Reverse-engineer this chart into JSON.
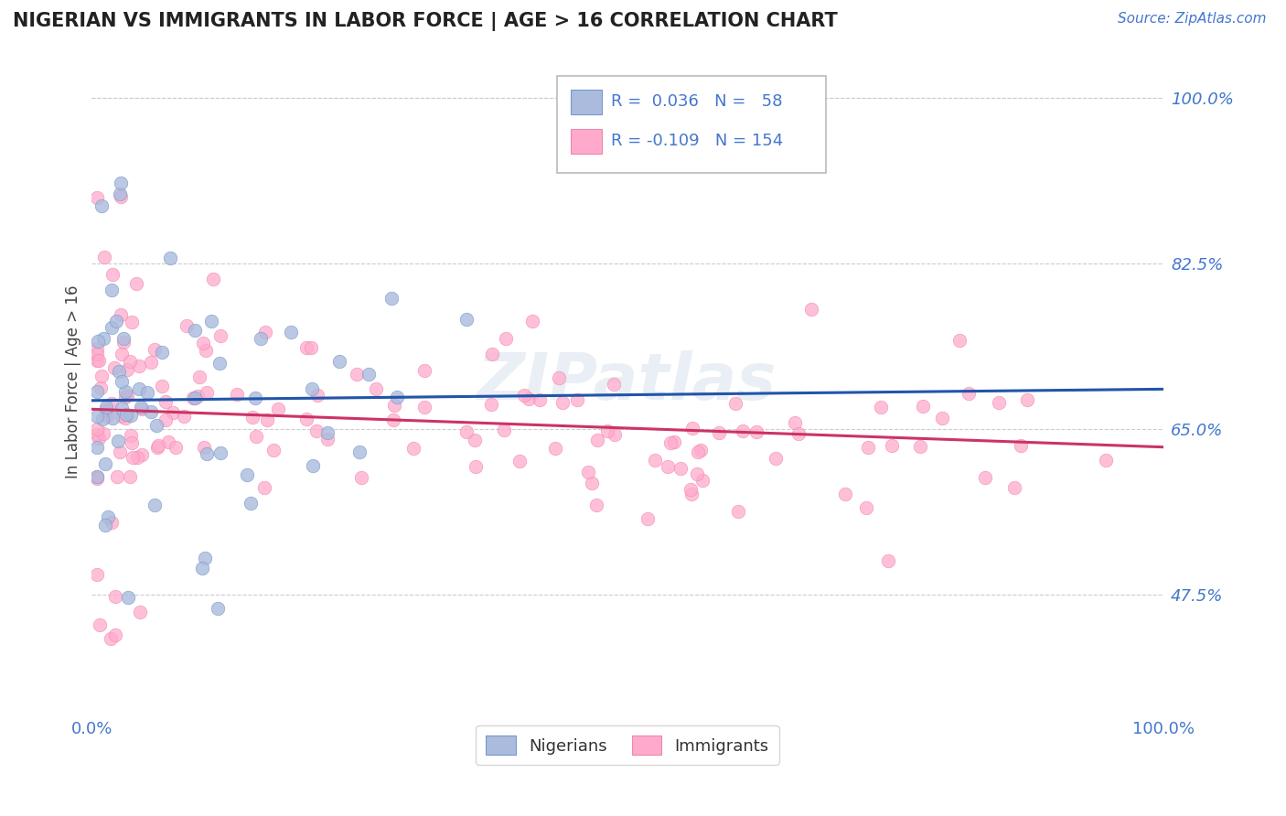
{
  "title": "NIGERIAN VS IMMIGRANTS IN LABOR FORCE | AGE > 16 CORRELATION CHART",
  "source": "Source: ZipAtlas.com",
  "ylabel": "In Labor Force | Age > 16",
  "ytick_values": [
    1.0,
    0.825,
    0.65,
    0.475
  ],
  "ytick_labels": [
    "100.0%",
    "82.5%",
    "65.0%",
    "47.5%"
  ],
  "legend_nigerians_R": "0.036",
  "legend_nigerians_N": "58",
  "legend_immigrants_R": "-0.109",
  "legend_immigrants_N": "154",
  "legend_label_nigerians": "Nigerians",
  "legend_label_immigrants": "Immigrants",
  "blue_fill": "#AABBDD",
  "blue_edge": "#7799CC",
  "pink_fill": "#FFAACC",
  "pink_edge": "#EE88AA",
  "blue_line_color": "#2255AA",
  "pink_line_color": "#CC3366",
  "blue_dash_color": "#8899BB",
  "text_blue": "#4477CC",
  "background_color": "#FFFFFF",
  "grid_color": "#CCCCCC",
  "watermark_color": "#BBCCE0",
  "watermark_alpha": 0.3,
  "xlim": [
    0.0,
    1.0
  ],
  "ylim": [
    0.35,
    1.05
  ]
}
